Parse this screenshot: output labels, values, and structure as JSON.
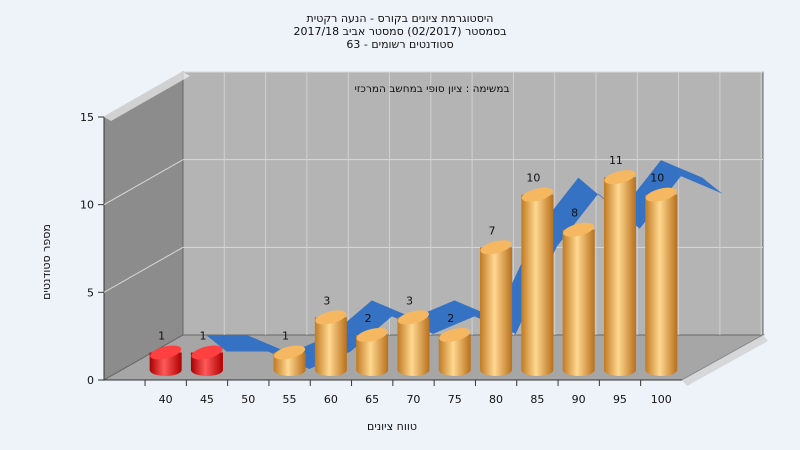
{
  "chart_data": {
    "type": "bar",
    "title_lines": [
      "היסטוגרמת ציונים בקורס - הנעה רקטית",
      "בסמסטר (02/2017) סמסטר אביב 2017/18",
      "63 - סטודנטים רשומים"
    ],
    "annotation": "במשימה : ציון סופי במחשב המרכזי",
    "xlabel": "טווח ציונים",
    "ylabel": "מספר סטודנטים",
    "categories": [
      "40",
      "45",
      "50",
      "55",
      "60",
      "65",
      "70",
      "75",
      "80",
      "85",
      "90",
      "95",
      "100"
    ],
    "values": [
      1,
      1,
      0,
      1,
      3,
      2,
      3,
      2,
      7,
      10,
      8,
      11,
      10
    ],
    "value_labels": [
      "1",
      "1",
      "",
      "1",
      "3",
      "2",
      "3",
      "2",
      "7",
      "10",
      "8",
      "11",
      "10"
    ],
    "yticks": [
      "0",
      "5",
      "10",
      "15"
    ],
    "ylim": [
      0,
      15
    ],
    "grid": true,
    "colors": {
      "fail_bar": "#e01010",
      "pass_bar": "#e8a040",
      "trend_band": "#2f6fc4",
      "wall": "#b4b4b4",
      "side_wall": "#8c8c8c",
      "floor": "#a6a6a6",
      "background": "#eef3fa"
    },
    "fail_threshold": 45
  }
}
